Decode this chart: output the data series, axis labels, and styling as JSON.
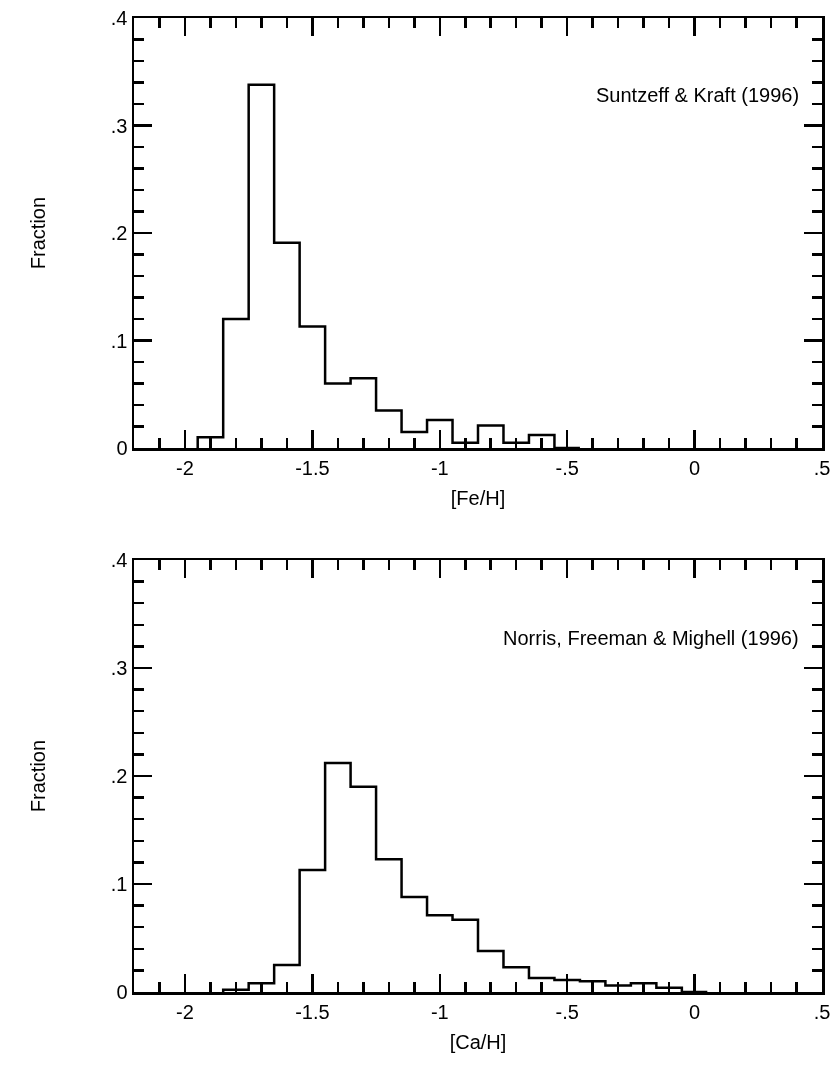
{
  "chart_data": [
    {
      "type": "histogram",
      "xlabel": "[Fe/H]",
      "ylabel": "Fraction",
      "annotations": [
        "Suntzeff & Kraft (1996)"
      ],
      "color": "#000000",
      "bins": [
        -1.95,
        -1.85,
        -1.75,
        -1.65,
        -1.55,
        -1.45,
        -1.35,
        -1.25,
        -1.15,
        -1.05,
        -0.95,
        -0.85,
        -0.75,
        -0.65,
        -0.55,
        -0.45
      ],
      "values": [
        0.01,
        0.12,
        0.338,
        0.191,
        0.113,
        0.06,
        0.065,
        0.035,
        0.015,
        0.026,
        0.005,
        0.021,
        0.005,
        0.012,
        0
      ],
      "xlim": [
        -2.2,
        0.5
      ],
      "xticks": [
        {
          "value": -2,
          "label": "-2"
        },
        {
          "value": -1.5,
          "label": "-1.5"
        },
        {
          "value": -1,
          "label": "-1"
        },
        {
          "value": -0.5,
          "label": "-.5"
        },
        0,
        {
          "value": 0.5,
          "label": ".5"
        }
      ],
      "ylim": [
        0,
        0.4
      ],
      "yticks": [
        0,
        {
          "value": 0.1,
          "label": ".1"
        },
        {
          "value": 0.2,
          "label": ".2"
        },
        {
          "value": 0.3,
          "label": ".3"
        },
        {
          "value": 0.4,
          "label": ".4"
        }
      ],
      "grid": false
    },
    {
      "type": "histogram",
      "xlabel": "[Ca/H]",
      "ylabel": "Fraction",
      "annotations": [
        "Norris, Freeman & Mighell (1996)"
      ],
      "color": "#000000",
      "bins": [
        -1.85,
        -1.75,
        -1.65,
        -1.55,
        -1.45,
        -1.35,
        -1.25,
        -1.15,
        -1.05,
        -0.95,
        -0.85,
        -0.75,
        -0.65,
        -0.55,
        -0.45,
        -0.35,
        -0.25,
        -0.15,
        -0.05,
        0.05
      ],
      "values": [
        0.002,
        0.008,
        0.025,
        0.113,
        0.212,
        0.19,
        0.123,
        0.088,
        0.071,
        0.067,
        0.038,
        0.023,
        0.013,
        0.011,
        0.01,
        0.006,
        0.008,
        0.004,
        0
      ],
      "xlim": [
        -2.2,
        0.5
      ],
      "xticks": [
        {
          "value": -2,
          "label": "-2"
        },
        {
          "value": -1.5,
          "label": "-1.5"
        },
        {
          "value": -1,
          "label": "-1"
        },
        {
          "value": -0.5,
          "label": "-.5"
        },
        0,
        {
          "value": 0.5,
          "label": ".5"
        }
      ],
      "ylim": [
        0,
        0.4
      ],
      "yticks": [
        0,
        {
          "value": 0.1,
          "label": ".1"
        },
        {
          "value": 0.2,
          "label": ".2"
        },
        {
          "value": 0.3,
          "label": ".3"
        },
        {
          "value": 0.4,
          "label": ".4"
        }
      ],
      "grid": false
    }
  ]
}
